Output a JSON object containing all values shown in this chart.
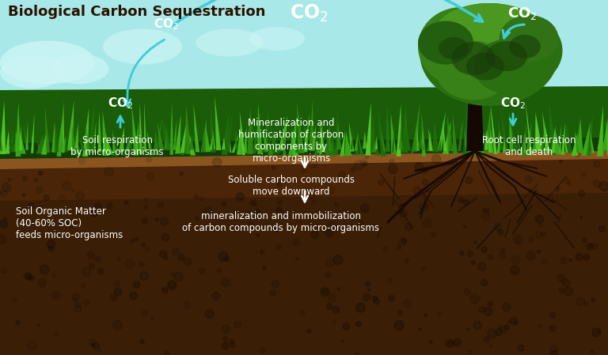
{
  "title": "Biological Carbon Sequestration",
  "title_color": "#2a1200",
  "title_fontsize": 13,
  "bg_sky_top": "#a8e8e8",
  "bg_sky_bot": "#c0f0f0",
  "cloud_color": "#cdf5f5",
  "grass_base_color": "#1a5c08",
  "grass_blade_colors": [
    "#2d8a10",
    "#3aaa18",
    "#4bbf22",
    "#1e6e08",
    "#55cc2a",
    "#227810",
    "#48b820"
  ],
  "soil_stripe_color": "#8b5520",
  "soil_upper_color": "#6b3a12",
  "soil_mid_color": "#4a2508",
  "soil_deep_color": "#3a1e06",
  "trunk_color": "#150800",
  "root_color": "#150800",
  "canopy_colors": [
    "#2a7010",
    "#388018",
    "#4a9820",
    "#226010",
    "#307215"
  ],
  "arrow_color": "#40ccd8",
  "white": "#ffffff",
  "labels": {
    "title": "Biological Carbon Sequestration",
    "soil_respiration": "Soil respiration\nby micro-organisms",
    "mineralization_top": "Mineralization and\nhumification of carbon\ncomponents by\nmicro-organisms",
    "soluble_carbon": "Soluble carbon compounds\nmove downward",
    "mineralization_deep": "mineralization and immobilization\nof carbon compounds by micro-organisms",
    "soil_organic": "Soil Organic Matter\n(40-60% SOC)\nfeeds micro-organisms",
    "root_cell": "Root cell respiration\nand death"
  }
}
